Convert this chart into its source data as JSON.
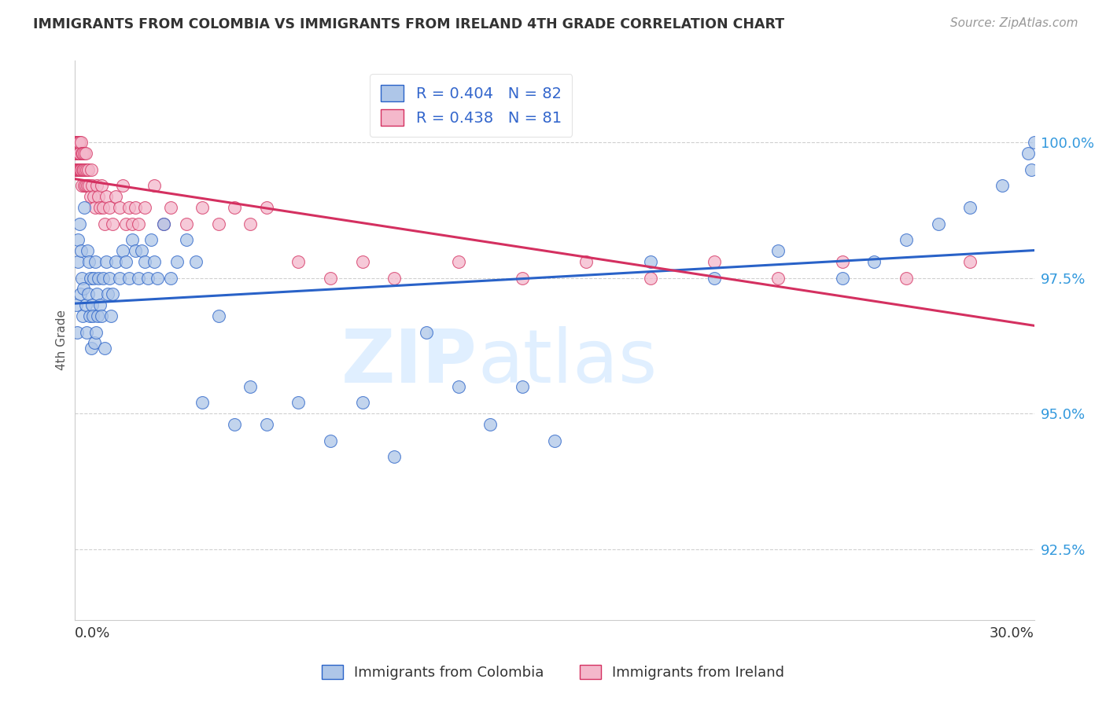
{
  "title": "IMMIGRANTS FROM COLOMBIA VS IMMIGRANTS FROM IRELAND 4TH GRADE CORRELATION CHART",
  "source": "Source: ZipAtlas.com",
  "ylabel": "4th Grade",
  "y_tick_values": [
    100.0,
    97.5,
    95.0,
    92.5
  ],
  "xlim": [
    0.0,
    30.0
  ],
  "ylim": [
    91.2,
    101.5
  ],
  "colombia_R": 0.404,
  "colombia_N": 82,
  "ireland_R": 0.438,
  "ireland_N": 81,
  "colombia_color": "#aec6e8",
  "ireland_color": "#f4b8cb",
  "colombia_line_color": "#2962c8",
  "ireland_line_color": "#d43060",
  "watermark_zip": "ZIP",
  "watermark_atlas": "atlas",
  "colombia_x": [
    0.05,
    0.08,
    0.1,
    0.12,
    0.15,
    0.18,
    0.2,
    0.22,
    0.25,
    0.28,
    0.3,
    0.35,
    0.38,
    0.4,
    0.42,
    0.45,
    0.48,
    0.5,
    0.52,
    0.55,
    0.58,
    0.6,
    0.62,
    0.65,
    0.68,
    0.7,
    0.72,
    0.75,
    0.8,
    0.85,
    0.9,
    0.95,
    1.0,
    1.05,
    1.1,
    1.15,
    1.2,
    1.3,
    1.4,
    1.5,
    1.6,
    1.7,
    1.8,
    1.9,
    2.0,
    2.1,
    2.2,
    2.3,
    2.4,
    2.5,
    2.6,
    2.8,
    3.0,
    3.2,
    3.5,
    3.8,
    4.0,
    4.5,
    5.0,
    5.5,
    6.0,
    7.0,
    8.0,
    9.0,
    10.0,
    11.0,
    12.0,
    13.0,
    14.0,
    15.0,
    18.0,
    20.0,
    22.0,
    24.0,
    25.0,
    26.0,
    27.0,
    28.0,
    29.0,
    29.8,
    29.9,
    30.0
  ],
  "colombia_y": [
    97.0,
    96.5,
    98.2,
    97.8,
    98.5,
    97.2,
    98.0,
    97.5,
    96.8,
    97.3,
    98.8,
    97.0,
    96.5,
    98.0,
    97.2,
    97.8,
    96.8,
    97.5,
    96.2,
    97.0,
    96.8,
    97.5,
    96.3,
    97.8,
    96.5,
    97.2,
    96.8,
    97.5,
    97.0,
    96.8,
    97.5,
    96.2,
    97.8,
    97.2,
    97.5,
    96.8,
    97.2,
    97.8,
    97.5,
    98.0,
    97.8,
    97.5,
    98.2,
    98.0,
    97.5,
    98.0,
    97.8,
    97.5,
    98.2,
    97.8,
    97.5,
    98.5,
    97.5,
    97.8,
    98.2,
    97.8,
    95.2,
    96.8,
    94.8,
    95.5,
    94.8,
    95.2,
    94.5,
    95.2,
    94.2,
    96.5,
    95.5,
    94.8,
    95.5,
    94.5,
    97.8,
    97.5,
    98.0,
    97.5,
    97.8,
    98.2,
    98.5,
    98.8,
    99.2,
    99.8,
    99.5,
    100.0
  ],
  "ireland_x": [
    0.02,
    0.03,
    0.04,
    0.05,
    0.06,
    0.07,
    0.08,
    0.08,
    0.09,
    0.1,
    0.1,
    0.12,
    0.12,
    0.13,
    0.14,
    0.15,
    0.15,
    0.16,
    0.17,
    0.18,
    0.2,
    0.2,
    0.22,
    0.22,
    0.25,
    0.25,
    0.28,
    0.3,
    0.3,
    0.32,
    0.35,
    0.35,
    0.38,
    0.4,
    0.42,
    0.45,
    0.5,
    0.52,
    0.55,
    0.6,
    0.65,
    0.7,
    0.75,
    0.8,
    0.85,
    0.9,
    0.95,
    1.0,
    1.1,
    1.2,
    1.3,
    1.4,
    1.5,
    1.6,
    1.7,
    1.8,
    1.9,
    2.0,
    2.2,
    2.5,
    2.8,
    3.0,
    3.5,
    4.0,
    4.5,
    5.0,
    5.5,
    6.0,
    7.0,
    8.0,
    9.0,
    10.0,
    12.0,
    14.0,
    16.0,
    18.0,
    20.0,
    22.0,
    24.0,
    26.0,
    28.0
  ],
  "ireland_y": [
    99.5,
    100.0,
    99.8,
    99.5,
    100.0,
    99.8,
    100.0,
    99.5,
    99.8,
    100.0,
    99.5,
    100.0,
    99.8,
    99.5,
    100.0,
    99.8,
    99.5,
    100.0,
    99.8,
    99.5,
    100.0,
    99.5,
    99.8,
    99.2,
    99.5,
    99.8,
    99.5,
    99.2,
    99.8,
    99.5,
    99.2,
    99.8,
    99.5,
    99.2,
    99.5,
    99.2,
    99.0,
    99.5,
    99.2,
    99.0,
    98.8,
    99.2,
    99.0,
    98.8,
    99.2,
    98.8,
    98.5,
    99.0,
    98.8,
    98.5,
    99.0,
    98.8,
    99.2,
    98.5,
    98.8,
    98.5,
    98.8,
    98.5,
    98.8,
    99.2,
    98.5,
    98.8,
    98.5,
    98.8,
    98.5,
    98.8,
    98.5,
    98.8,
    97.8,
    97.5,
    97.8,
    97.5,
    97.8,
    97.5,
    97.8,
    97.5,
    97.8,
    97.5,
    97.8,
    97.5,
    97.8
  ]
}
